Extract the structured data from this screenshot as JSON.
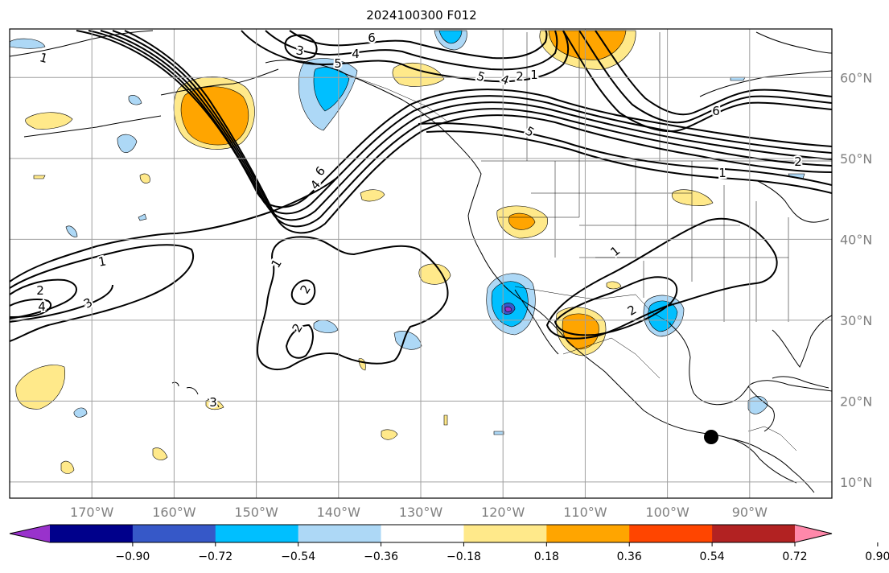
{
  "title": "2024100300 F012",
  "axes": {
    "lon_labels": [
      "170°W",
      "160°W",
      "150°W",
      "140°W",
      "130°W",
      "120°W",
      "110°W",
      "100°W",
      "90°W"
    ],
    "lat_labels": [
      "60°N",
      "50°N",
      "40°N",
      "30°N",
      "20°N",
      "10°N"
    ],
    "lon_values": [
      -170,
      -160,
      -150,
      -140,
      -130,
      -120,
      -110,
      -100,
      -90
    ],
    "lat_values": [
      60,
      50,
      40,
      30,
      20,
      10
    ],
    "lon_range": [
      -180,
      -80
    ],
    "lat_range": [
      8,
      66
    ],
    "grid": true,
    "tick_label_color": "#808080"
  },
  "colorbar": {
    "ticks": [
      "−0.90",
      "−0.72",
      "−0.54",
      "−0.36",
      "−0.18",
      "0.18",
      "0.36",
      "0.54",
      "0.72",
      "0.90"
    ],
    "colors": [
      "#9932cc",
      "#00008b",
      "#3658c8",
      "#00bfff",
      "#add8f6",
      "#ffffff",
      "#ffe98a",
      "#ffa500",
      "#ff4500",
      "#b22222",
      "#ff88aa"
    ],
    "extend": "both"
  },
  "contour_labels": [
    "1",
    "2",
    "3",
    "4",
    "5",
    "6"
  ],
  "fill_colors": {
    "pos1": "#ffe98a",
    "pos2": "#ffa500",
    "neg1": "#add8f6",
    "neg2": "#00bfff",
    "neg4": "#3658c8",
    "neg5": "#9932cc"
  },
  "marker": {
    "symbol": "filled-circle",
    "color": "#000000"
  }
}
